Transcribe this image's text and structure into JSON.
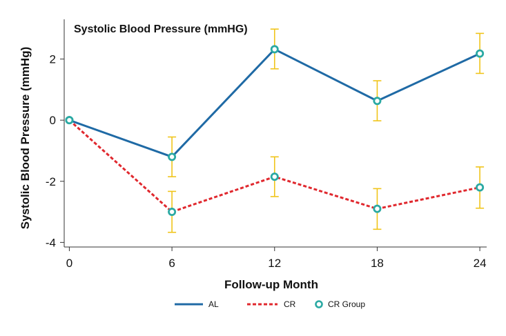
{
  "chart_data": {
    "type": "line",
    "title": "Systolic Blood Pressure (mmHG)",
    "xlabel": "Follow-up Month",
    "ylabel": "Systolic Blood Pressure (mmHg)",
    "x": [
      0,
      6,
      12,
      18,
      24
    ],
    "x_ticks": [
      "0",
      "6",
      "12",
      "18",
      "24"
    ],
    "y_ticks": [
      -4,
      -2,
      0,
      2
    ],
    "y_tick_labels": [
      "-4",
      "-2",
      "0",
      "2"
    ],
    "xlim": [
      -0.3,
      24.4
    ],
    "ylim": [
      -4.15,
      3.3
    ],
    "series": [
      {
        "name": "AL",
        "color": "#1f6aa5",
        "style": "solid",
        "values": [
          0,
          -1.2,
          2.32,
          0.63,
          2.18
        ],
        "error_low": [
          0,
          -1.85,
          1.68,
          -0.02,
          1.53
        ],
        "error_high": [
          0,
          -0.55,
          2.98,
          1.29,
          2.84
        ]
      },
      {
        "name": "CR",
        "color": "#e0282e",
        "style": "dashed",
        "values": [
          0,
          -3.0,
          -1.85,
          -2.9,
          -2.2
        ],
        "error_low": [
          0,
          -3.67,
          -2.5,
          -3.57,
          -2.88
        ],
        "error_high": [
          0,
          -2.33,
          -1.2,
          -2.24,
          -1.53
        ]
      }
    ],
    "markers": {
      "name": "CR Group",
      "color": "#2aa9a3",
      "applies_to": [
        "AL",
        "CR"
      ]
    },
    "error_bar_color": "#f0c419",
    "legend": [
      "AL",
      "CR",
      "CR Group"
    ],
    "legend_position": "bottom",
    "grid": false
  }
}
